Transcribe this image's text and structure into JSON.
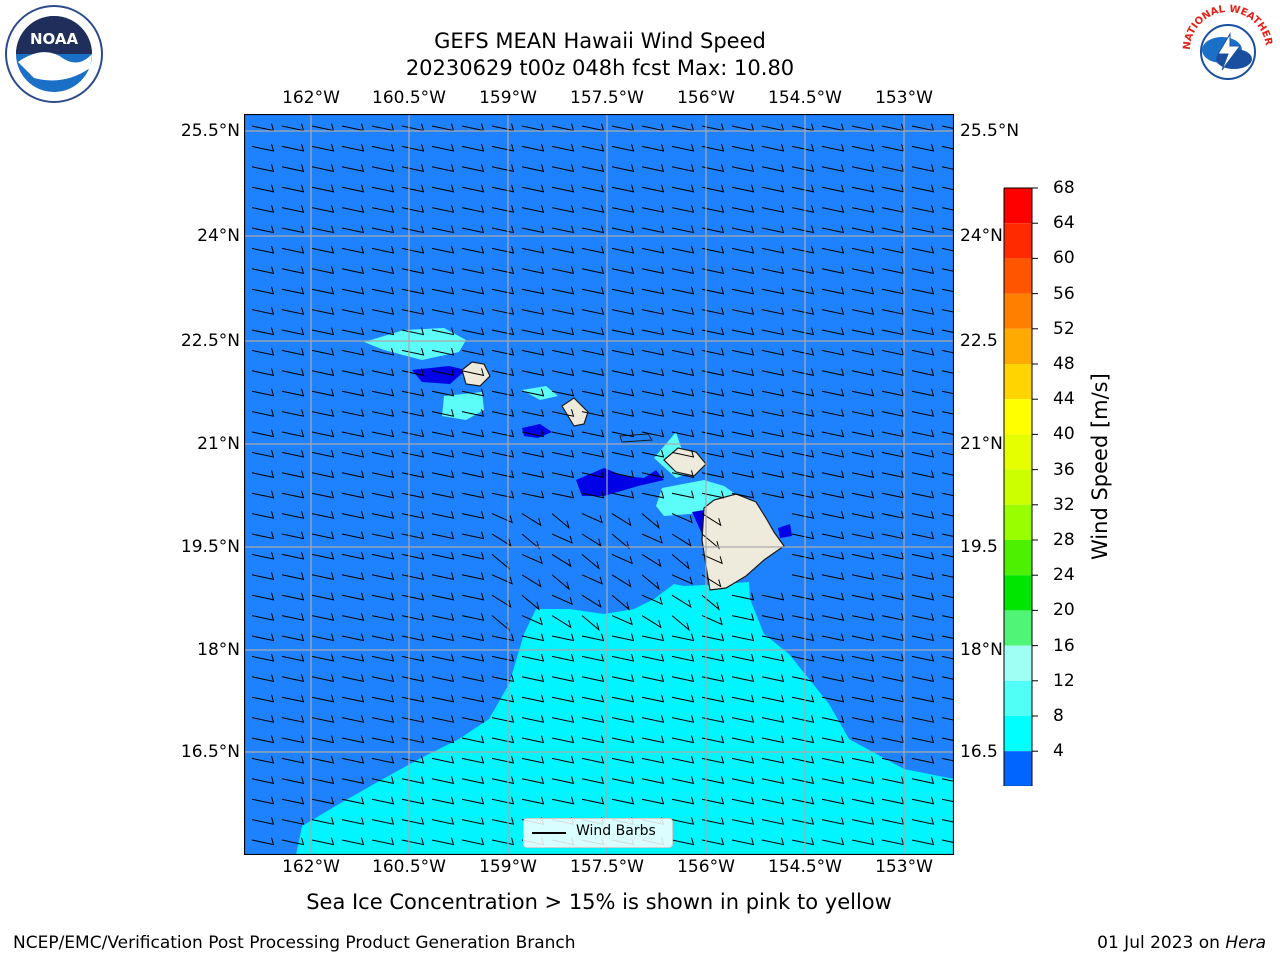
{
  "header": {
    "title_line1": "GEFS MEAN Hawaii Wind Speed",
    "title_line2": "20230629 t00z 048h fcst   Max: 10.80"
  },
  "logos": {
    "left": {
      "icon": "noaa-logo",
      "text": "NOAA"
    },
    "right": {
      "icon": "nws-logo",
      "text": "NATIONAL WEATHER SERVICE"
    }
  },
  "map": {
    "lon_ticks": [
      "162°W",
      "160.5°W",
      "159°W",
      "157.5°W",
      "156°W",
      "154.5°W",
      "153°W"
    ],
    "lat_ticks": [
      "25.5°N",
      "24°N",
      "22.5°N",
      "21°N",
      "19.5°N",
      "18°N",
      "16.5°N"
    ],
    "lat_ticks_right": [
      "25.5°N",
      "24°N",
      "22.5",
      "21°N",
      "19.5",
      "18°N",
      "16.5"
    ],
    "legend_label": "Wind Barbs",
    "colors": {
      "ocean": "#1e82ff",
      "band_8_12": "#00f5ff",
      "band_12_16": "#5cfcf9",
      "land": "#efebdc",
      "low": "#0000e6"
    }
  },
  "colorbar": {
    "title": "Wind Speed [m/s]",
    "labels": [
      "68",
      "64",
      "60",
      "56",
      "52",
      "48",
      "44",
      "40",
      "36",
      "32",
      "28",
      "24",
      "20",
      "16",
      "12",
      "8",
      "4"
    ],
    "colors": [
      "#ff0000",
      "#ff2a00",
      "#ff5500",
      "#ff8000",
      "#ffaa00",
      "#ffd400",
      "#ffff00",
      "#e5ff00",
      "#ccff00",
      "#99ff00",
      "#4cf000",
      "#00e600",
      "#50f578",
      "#a0fff5",
      "#50fff5",
      "#00ffff",
      "#0064ff"
    ],
    "extend_color": "#0000e6"
  },
  "caption": "Sea Ice Concentration > 15% is shown in pink to yellow",
  "footer": {
    "left": "NCEP/EMC/Verification Post Processing Product Generation Branch",
    "right_date": "01 Jul 2023 on",
    "right_host": "Hera"
  }
}
